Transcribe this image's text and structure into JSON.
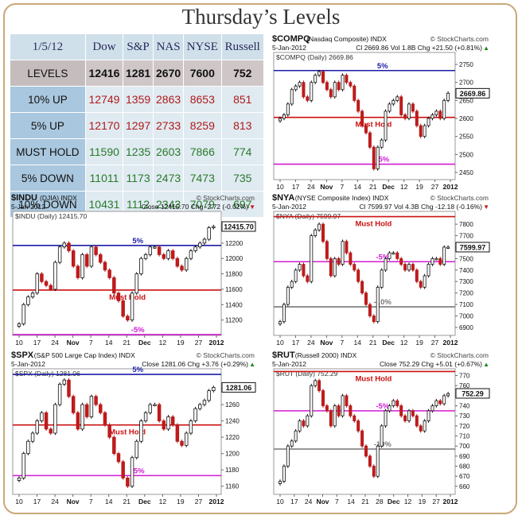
{
  "title": "Thursday’s Levels",
  "table": {
    "date": "1/5/12",
    "columns": [
      "Dow",
      "S&P",
      "NAS",
      "NYSE",
      "Russell"
    ],
    "rows": [
      {
        "label": "LEVELS",
        "values": [
          "12416",
          "1281",
          "2670",
          "7600",
          "752"
        ],
        "kind": "levels"
      },
      {
        "label": "10% UP",
        "values": [
          "12749",
          "1359",
          "2863",
          "8653",
          "851"
        ],
        "kind": "up"
      },
      {
        "label": "5% UP",
        "values": [
          "12170",
          "1297",
          "2733",
          "8259",
          "813"
        ],
        "kind": "up"
      },
      {
        "label": "MUST HOLD",
        "values": [
          "11590",
          "1235",
          "2603",
          "7866",
          "774"
        ],
        "kind": "mid"
      },
      {
        "label": "5% DOWN",
        "values": [
          "11011",
          "1173",
          "2473",
          "7473",
          "735"
        ],
        "kind": "mid"
      },
      {
        "label": "10% DOWN",
        "values": [
          "10431",
          "1112",
          "2343",
          "7079",
          "697"
        ],
        "kind": "mid"
      }
    ]
  },
  "chart_data": [
    {
      "id": "compq",
      "type": "candlestick",
      "symbol": "$COMPQ",
      "name": "(Nasdaq Composite)",
      "exchange": "INDX",
      "source": "© StockCharts.com",
      "date": "5-Jan-2012",
      "stats": "Cl 2669.86   Vol 1.8B   Chg +21.50 (+0.81%)",
      "chg_arrow": "▲",
      "series_label": "$COMPQ (Daily) 2669.86",
      "last": "2669.86",
      "ylim": [
        2430,
        2770
      ],
      "yticks": [
        2450,
        2500,
        2550,
        2600,
        2650,
        2700,
        2750
      ],
      "xticks": [
        "10",
        "17",
        "24",
        "Nov",
        "7",
        "14",
        "21",
        "Dec",
        "12",
        "19",
        "27",
        "2012"
      ],
      "levels": [
        {
          "label": "5%",
          "value": 2733,
          "color": "#1c1ca8"
        },
        {
          "label": "Must Hold",
          "value": 2603,
          "color": "#cc1111"
        },
        {
          "label": "-5%",
          "value": 2473,
          "color": "#d21cd2"
        }
      ],
      "closes": [
        2600,
        2610,
        2640,
        2680,
        2690,
        2700,
        2660,
        2650,
        2700,
        2720,
        2730,
        2700,
        2680,
        2660,
        2700,
        2680,
        2720,
        2700,
        2690,
        2650,
        2620,
        2580,
        2560,
        2520,
        2460,
        2520,
        2540,
        2620,
        2640,
        2650,
        2660,
        2610,
        2600,
        2640,
        2620,
        2580,
        2550,
        2580,
        2600,
        2610,
        2620,
        2600,
        2650,
        2670
      ]
    },
    {
      "id": "indu",
      "type": "candlestick",
      "symbol": "$INDU",
      "name": "(DJIA)",
      "exchange": "INDX",
      "source": "© StockCharts.com",
      "date": "5-Jan-2012",
      "stats": "Close 12415.70   Chg -2.72 (-0.02%)",
      "chg_arrow": "▼",
      "series_label": "$INDU (Daily) 12415.70",
      "last": "12415.70",
      "ylim": [
        11000,
        12550
      ],
      "yticks": [
        11200,
        11400,
        11600,
        11800,
        12000,
        12200,
        12400
      ],
      "xticks": [
        "10",
        "17",
        "24",
        "Nov",
        "7",
        "14",
        "21",
        "Dec",
        "12",
        "19",
        "27",
        "2012"
      ],
      "levels": [
        {
          "label": "5%",
          "value": 12170,
          "color": "#1c1ca8"
        },
        {
          "label": "Must Hold",
          "value": 11590,
          "color": "#cc1111"
        },
        {
          "label": "-5%",
          "value": 11011,
          "color": "#d21cd2"
        }
      ],
      "closes": [
        11150,
        11400,
        11500,
        11550,
        11800,
        11700,
        11650,
        11600,
        11950,
        12150,
        12200,
        12100,
        11900,
        11750,
        12050,
        11900,
        12150,
        12050,
        11950,
        11850,
        11750,
        11550,
        11450,
        11250,
        11200,
        11550,
        11800,
        12000,
        12050,
        12150,
        12150,
        12050,
        12000,
        12100,
        12000,
        11900,
        11850,
        12000,
        12100,
        12150,
        12200,
        12250,
        12400,
        12415
      ]
    },
    {
      "id": "nya",
      "type": "candlestick",
      "symbol": "$NYA",
      "name": "(NYSE Composite Index)",
      "exchange": "INDX",
      "source": "© StockCharts.com",
      "date": "5-Jan-2012",
      "stats": "Cl 7599.97   Vol 4.3B   Chg -12.18 (-0.16%)",
      "chg_arrow": "▼",
      "series_label": "$NYA (Daily) 7599.97",
      "last": "7599.97",
      "ylim": [
        6830,
        7870
      ],
      "yticks": [
        6900,
        7000,
        7100,
        7200,
        7300,
        7400,
        7500,
        7600,
        7700,
        7800
      ],
      "xticks": [
        "10",
        "17",
        "24",
        "Nov",
        "7",
        "14",
        "21",
        "Dec",
        "12",
        "19",
        "27",
        "2012"
      ],
      "levels": [
        {
          "label": "Must Hold",
          "value": 7866,
          "color": "#cc1111"
        },
        {
          "label": "-5%",
          "value": 7473,
          "color": "#d21cd2"
        },
        {
          "label": "-10%",
          "value": 7079,
          "color": "#777777"
        }
      ],
      "closes": [
        6950,
        7100,
        7250,
        7300,
        7400,
        7450,
        7350,
        7300,
        7700,
        7750,
        7800,
        7650,
        7500,
        7350,
        7500,
        7450,
        7650,
        7550,
        7450,
        7400,
        7300,
        7200,
        7100,
        7000,
        6950,
        7250,
        7400,
        7500,
        7550,
        7550,
        7500,
        7450,
        7400,
        7450,
        7400,
        7300,
        7250,
        7350,
        7450,
        7500,
        7500,
        7450,
        7600,
        7600
      ]
    },
    {
      "id": "spx",
      "type": "candlestick",
      "symbol": "$SPX",
      "name": "(S&P 500 Large Cap Index)",
      "exchange": "INDX",
      "source": "© StockCharts.com",
      "date": "5-Jan-2012",
      "stats": "Close 1281.06   Chg +3.76 (+0.29%)",
      "chg_arrow": "▲",
      "series_label": "$SPX (Daily) 1281.06",
      "last": "1281.06",
      "ylim": [
        1150,
        1298
      ],
      "yticks": [
        1160,
        1180,
        1200,
        1220,
        1240,
        1260,
        1280
      ],
      "xticks": [
        "10",
        "17",
        "24",
        "Nov",
        "7",
        "14",
        "21",
        "Dec",
        "12",
        "19",
        "27",
        "2012"
      ],
      "levels": [
        {
          "label": "5%",
          "value": 1297,
          "color": "#1c1ca8"
        },
        {
          "label": "Must Hold",
          "value": 1235,
          "color": "#cc1111"
        },
        {
          "label": "-5%",
          "value": 1173,
          "color": "#d21cd2"
        }
      ],
      "closes": [
        1170,
        1200,
        1215,
        1225,
        1240,
        1250,
        1230,
        1225,
        1260,
        1285,
        1290,
        1270,
        1250,
        1230,
        1260,
        1245,
        1270,
        1260,
        1250,
        1235,
        1220,
        1200,
        1190,
        1170,
        1160,
        1195,
        1215,
        1240,
        1250,
        1260,
        1260,
        1240,
        1230,
        1245,
        1235,
        1215,
        1210,
        1225,
        1240,
        1255,
        1260,
        1265,
        1277,
        1281
      ]
    },
    {
      "id": "rut",
      "type": "candlestick",
      "symbol": "$RUT",
      "name": "(Russell 2000)",
      "exchange": "INDX",
      "source": "© StockCharts.com",
      "date": "5-Jan-2012",
      "stats": "Close 752.29   Chg +5.01 (+0.67%)",
      "chg_arrow": "▲",
      "series_label": "$RUT (Daily) 752.29",
      "last": "752.29",
      "ylim": [
        652,
        772
      ],
      "yticks": [
        660,
        670,
        680,
        690,
        700,
        710,
        720,
        730,
        740,
        750,
        760,
        770
      ],
      "xticks": [
        "10",
        "17",
        "24",
        "Nov",
        "7",
        "14",
        "21",
        "28",
        "Dec",
        "12",
        "19",
        "27",
        "2012"
      ],
      "levels": [
        {
          "label": "Must Hold",
          "value": 774,
          "color": "#cc1111"
        },
        {
          "label": "-5%",
          "value": 735,
          "color": "#d21cd2"
        },
        {
          "label": "-10%",
          "value": 697,
          "color": "#777777"
        }
      ],
      "closes": [
        665,
        680,
        700,
        705,
        715,
        725,
        720,
        730,
        760,
        765,
        755,
        740,
        735,
        720,
        740,
        730,
        750,
        740,
        730,
        725,
        715,
        700,
        690,
        680,
        670,
        700,
        720,
        735,
        740,
        745,
        740,
        730,
        725,
        735,
        730,
        720,
        715,
        725,
        735,
        740,
        745,
        742,
        750,
        752
      ]
    }
  ]
}
